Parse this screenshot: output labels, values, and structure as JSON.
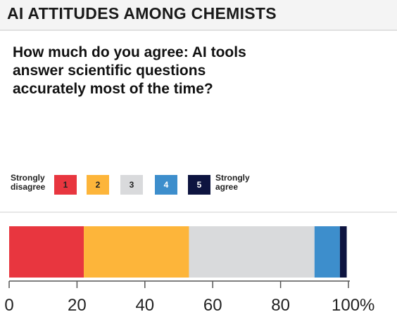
{
  "title": "AI ATTITUDES AMONG CHEMISTS",
  "question": "How much do you agree: AI tools answer scientific questions accurately most of the time?",
  "legend": {
    "low_label": "Strongly disagree",
    "high_label": "Strongly agree",
    "items": [
      {
        "label": "1",
        "color": "#e8363f",
        "text_color": "#222222"
      },
      {
        "label": "2",
        "color": "#fdb53a",
        "text_color": "#222222"
      },
      {
        "label": "3",
        "color": "#d9dadc",
        "text_color": "#222222"
      },
      {
        "label": "4",
        "color": "#3d8ecc",
        "text_color": "#ffffff"
      },
      {
        "label": "5",
        "color": "#0d1440",
        "text_color": "#ffffff"
      }
    ]
  },
  "chart_data": {
    "type": "bar",
    "orientation": "horizontal",
    "stacked": true,
    "categories": [
      "1",
      "2",
      "3",
      "4",
      "5"
    ],
    "values": [
      22,
      31,
      37,
      7.5,
      2
    ],
    "xlim": [
      0,
      100
    ],
    "xticks": [
      "0",
      "20",
      "40",
      "60",
      "80",
      "100%"
    ],
    "grid": false
  }
}
